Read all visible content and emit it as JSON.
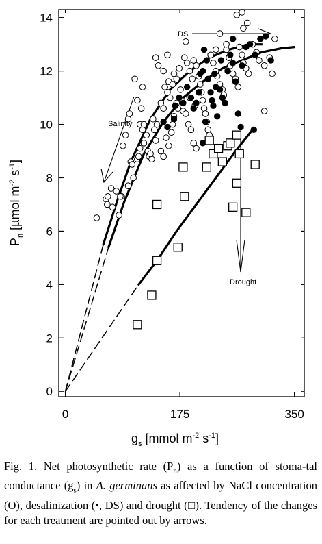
{
  "chart_data": {
    "type": "scatter",
    "title": "",
    "xlabel_main": "g",
    "xlabel_sub": "s",
    "xlabel_unit": "[mmol m",
    "xlabel_exp": "-2",
    "xlabel_tail": " s",
    "xlabel_exp2": "-1",
    "xlabel_close": "]",
    "ylabel_main": "P",
    "ylabel_sub": "n",
    "ylabel_unit": "[µmol m",
    "ylabel_exp": "-2",
    "ylabel_tail": " s",
    "ylabel_exp2": "-1",
    "ylabel_close": "]",
    "xlim": [
      -10,
      365
    ],
    "ylim": [
      -0.2,
      14.3
    ],
    "x_ticks": [
      0,
      175,
      350
    ],
    "x_tick_labels": [
      "0",
      "175",
      "350"
    ],
    "y_ticks": [
      0,
      2,
      4,
      6,
      8,
      10,
      12,
      14
    ],
    "y_tick_labels": [
      "0",
      "2",
      "4",
      "6",
      "8",
      "10",
      "12",
      "14"
    ],
    "grid": false,
    "annotations": [
      "Salinity",
      "DS",
      "Drought"
    ],
    "series": [
      {
        "marker": "open-circle",
        "points": [
          [
            48,
            6.5
          ],
          [
            62,
            7.2
          ],
          [
            65,
            7.3
          ],
          [
            64,
            7.0
          ],
          [
            70,
            7.6
          ],
          [
            78,
            7.5
          ],
          [
            86,
            7.3
          ],
          [
            72,
            6.9
          ],
          [
            82,
            6.6
          ],
          [
            84,
            7.3
          ],
          [
            96,
            7.7
          ],
          [
            100,
            8.6
          ],
          [
            102,
            8.5
          ],
          [
            110,
            8.7
          ],
          [
            112,
            8.8
          ],
          [
            114,
            9.1
          ],
          [
            120,
            9.3
          ],
          [
            124,
            9.6
          ],
          [
            126,
            9.0
          ],
          [
            128,
            8.8
          ],
          [
            132,
            8.7
          ],
          [
            118,
            9.8
          ],
          [
            114,
            10.0
          ],
          [
            120,
            10.0
          ],
          [
            96,
            10.2
          ],
          [
            98,
            10.4
          ],
          [
            116,
            10.6
          ],
          [
            134,
            10.2
          ],
          [
            136,
            9.8
          ],
          [
            140,
            10.0
          ],
          [
            138,
            9.4
          ],
          [
            146,
            9.0
          ],
          [
            150,
            8.8
          ],
          [
            154,
            9.5
          ],
          [
            158,
            9.2
          ],
          [
            162,
            9.7
          ],
          [
            164,
            10.0
          ],
          [
            166,
            10.3
          ],
          [
            170,
            10.8
          ],
          [
            172,
            10.6
          ],
          [
            150,
            10.6
          ],
          [
            146,
            10.8
          ],
          [
            152,
            11.4
          ],
          [
            156,
            11.2
          ],
          [
            160,
            11.0
          ],
          [
            158,
            11.6
          ],
          [
            164,
            11.5
          ],
          [
            166,
            11.9
          ],
          [
            170,
            11.7
          ],
          [
            174,
            12.1
          ],
          [
            176,
            11.3
          ],
          [
            178,
            10.9
          ],
          [
            180,
            10.5
          ],
          [
            184,
            10.4
          ],
          [
            188,
            10.0
          ],
          [
            192,
            9.8
          ],
          [
            196,
            9.3
          ],
          [
            200,
            9.1
          ],
          [
            182,
            12.5
          ],
          [
            186,
            12.3
          ],
          [
            190,
            12.0
          ],
          [
            194,
            11.7
          ],
          [
            196,
            12.4
          ],
          [
            200,
            12.2
          ],
          [
            204,
            11.8
          ],
          [
            206,
            11.5
          ],
          [
            208,
            11.2
          ],
          [
            210,
            10.9
          ],
          [
            212,
            10.6
          ],
          [
            214,
            10.4
          ],
          [
            216,
            10.1
          ],
          [
            218,
            9.8
          ],
          [
            220,
            9.6
          ],
          [
            222,
            12.6
          ],
          [
            226,
            12.3
          ],
          [
            230,
            12.0
          ],
          [
            232,
            11.8
          ],
          [
            236,
            11.5
          ],
          [
            240,
            11.3
          ],
          [
            242,
            11.1
          ],
          [
            246,
            12.8
          ],
          [
            250,
            12.5
          ],
          [
            252,
            12.2
          ],
          [
            256,
            11.9
          ],
          [
            260,
            11.7
          ],
          [
            264,
            11.4
          ],
          [
            266,
            12.9
          ],
          [
            270,
            12.6
          ],
          [
            272,
            12.3
          ],
          [
            276,
            12.1
          ],
          [
            280,
            11.9
          ],
          [
            286,
            13.0
          ],
          [
            292,
            12.7
          ],
          [
            296,
            12.4
          ],
          [
            304,
            12.2
          ],
          [
            312,
            12.5
          ],
          [
            316,
            11.9
          ],
          [
            320,
            13.2
          ],
          [
            304,
            10.5
          ],
          [
            262,
            14.1
          ],
          [
            270,
            14.2
          ],
          [
            278,
            13.8
          ],
          [
            272,
            13.6
          ],
          [
            236,
            13.4
          ],
          [
            246,
            13.0
          ],
          [
            230,
            12.8
          ],
          [
            106,
            11.7
          ],
          [
            118,
            11.4
          ],
          [
            138,
            12.5
          ],
          [
            142,
            12.2
          ],
          [
            150,
            12.0
          ],
          [
            156,
            12.6
          ],
          [
            184,
            13.1
          ],
          [
            190,
            11.0
          ],
          [
            198,
            10.7
          ],
          [
            130,
            8.9
          ],
          [
            104,
            8.0
          ],
          [
            110,
            10.9
          ],
          [
            88,
            9.2
          ],
          [
            92,
            9.6
          ]
        ]
      },
      {
        "marker": "filled-circle",
        "points": [
          [
            150,
            10.1
          ],
          [
            156,
            9.9
          ],
          [
            166,
            10.2
          ],
          [
            168,
            10.7
          ],
          [
            174,
            11.0
          ],
          [
            180,
            10.8
          ],
          [
            186,
            11.4
          ],
          [
            192,
            11.0
          ],
          [
            196,
            10.6
          ],
          [
            200,
            10.8
          ],
          [
            204,
            11.2
          ],
          [
            206,
            11.9
          ],
          [
            210,
            12.0
          ],
          [
            212,
            12.8
          ],
          [
            216,
            12.4
          ],
          [
            218,
            11.7
          ],
          [
            222,
            11.2
          ],
          [
            224,
            10.9
          ],
          [
            226,
            10.7
          ],
          [
            228,
            11.9
          ],
          [
            230,
            11.4
          ],
          [
            232,
            10.3
          ],
          [
            236,
            11.3
          ],
          [
            240,
            11.0
          ],
          [
            244,
            10.8
          ],
          [
            248,
            12.0
          ],
          [
            252,
            12.6
          ],
          [
            256,
            12.3
          ],
          [
            260,
            11.6
          ],
          [
            264,
            10.4
          ],
          [
            268,
            9.9
          ],
          [
            270,
            12.2
          ],
          [
            276,
            12.9
          ],
          [
            282,
            13.0
          ],
          [
            290,
            12.6
          ],
          [
            298,
            13.2
          ],
          [
            306,
            13.3
          ],
          [
            314,
            12.4
          ],
          [
            288,
            9.8
          ],
          [
            256,
            13.2
          ],
          [
            238,
            12.4
          ],
          [
            210,
            9.3
          ],
          [
            214,
            10.1
          ]
        ]
      },
      {
        "marker": "open-square",
        "points": [
          [
            110,
            2.5
          ],
          [
            132,
            3.6
          ],
          [
            140,
            4.9
          ],
          [
            140,
            7.0
          ],
          [
            172,
            5.4
          ],
          [
            182,
            7.3
          ],
          [
            180,
            8.4
          ],
          [
            216,
            8.4
          ],
          [
            220,
            9.4
          ],
          [
            226,
            8.9
          ],
          [
            234,
            9.1
          ],
          [
            240,
            8.6
          ],
          [
            248,
            9.2
          ],
          [
            252,
            9.3
          ],
          [
            262,
            9.6
          ],
          [
            256,
            6.9
          ],
          [
            262,
            7.8
          ],
          [
            266,
            8.9
          ],
          [
            276,
            6.7
          ],
          [
            290,
            8.5
          ]
        ]
      }
    ],
    "fitted_curves": [
      {
        "style": "solid",
        "points": [
          [
            58,
            5.5
          ],
          [
            80,
            7.2
          ],
          [
            100,
            8.6
          ],
          [
            130,
            10.2
          ],
          [
            160,
            11.3
          ],
          [
            190,
            12.0
          ],
          [
            220,
            12.5
          ],
          [
            250,
            12.8
          ],
          [
            280,
            13.0
          ],
          [
            300,
            13.0
          ]
        ]
      },
      {
        "style": "solid",
        "points": [
          [
            66,
            5.4
          ],
          [
            90,
            7.1
          ],
          [
            120,
            8.9
          ],
          [
            150,
            10.1
          ],
          [
            180,
            11.0
          ],
          [
            210,
            11.6
          ],
          [
            240,
            12.1
          ],
          [
            270,
            12.4
          ],
          [
            300,
            12.7
          ],
          [
            330,
            12.85
          ],
          [
            350,
            12.9
          ]
        ]
      },
      {
        "style": "solid",
        "points": [
          [
            112,
            4.0
          ],
          [
            140,
            4.9
          ],
          [
            170,
            6.0
          ],
          [
            200,
            7.0
          ],
          [
            230,
            8.0
          ],
          [
            260,
            9.0
          ],
          [
            286,
            9.8
          ]
        ]
      },
      {
        "style": "dashed",
        "points": [
          [
            0,
            0
          ],
          [
            58,
            5.5
          ]
        ]
      },
      {
        "style": "dashed",
        "points": [
          [
            0,
            0
          ],
          [
            66,
            5.4
          ]
        ]
      },
      {
        "style": "dashed",
        "points": [
          [
            0,
            0
          ],
          [
            112,
            4.0
          ]
        ]
      }
    ]
  },
  "caption": {
    "p1": "Fig. 1. Net photosynthetic rate (P",
    "p1_sub": "n",
    "p2": ") as a function of stoma-tal conductance (g",
    "p2_sub": "s",
    "p3": ") in ",
    "p3_italic": "A. germinans",
    "p4": " as affected by NaCl concentration (O), desalinization (•, DS) and drought (",
    "p4_box": "□",
    "p5": "). Tendency of the changes for each treatment are pointed out by arrows."
  }
}
